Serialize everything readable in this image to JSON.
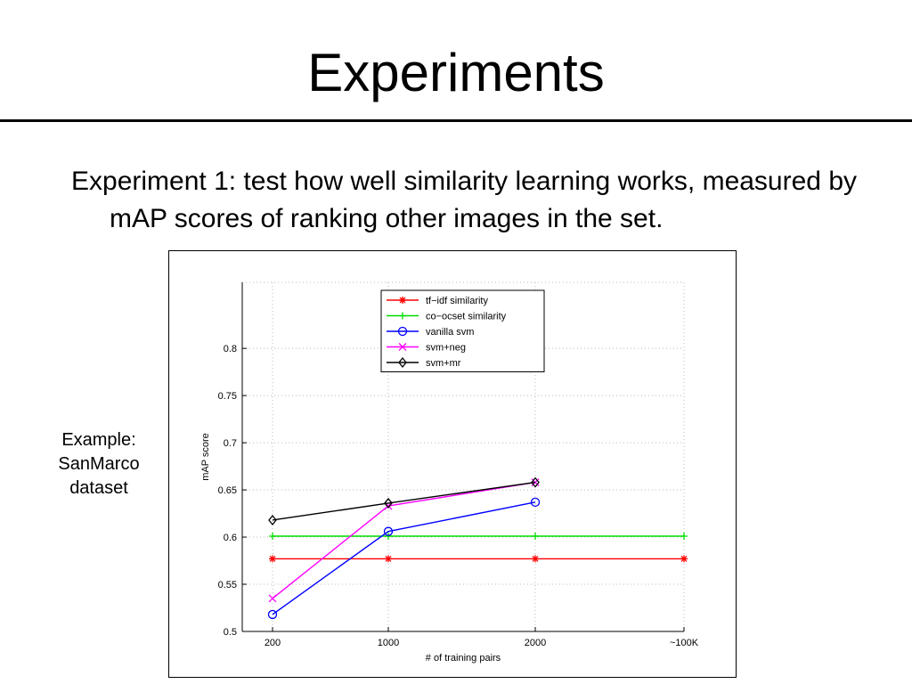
{
  "slide": {
    "title": "Experiments",
    "bullet": "Experiment 1: test how well similarity learning works, measured by mAP scores of ranking other images in the set.",
    "side_note": "Example: SanMarco dataset"
  },
  "chart_data": {
    "type": "line",
    "title": "",
    "xlabel": "# of training pairs",
    "ylabel": "mAP score",
    "categories": [
      "200",
      "1000",
      "2000",
      "~100K"
    ],
    "ylim": [
      0.5,
      0.87
    ],
    "yticks": [
      "0.5",
      "0.55",
      "0.6",
      "0.65",
      "0.7",
      "0.75",
      "0.8"
    ],
    "grid": true,
    "legend_position": "top-center",
    "series": [
      {
        "name": "tf−idf similarity",
        "color": "#ff0000",
        "marker": "star",
        "values": [
          0.577,
          0.577,
          0.577,
          0.577
        ]
      },
      {
        "name": "co−ocset similarity",
        "color": "#00dd00",
        "marker": "plus",
        "values": [
          0.601,
          0.601,
          0.601,
          0.601
        ]
      },
      {
        "name": "vanilla svm",
        "color": "#0000ff",
        "marker": "circle",
        "values": [
          0.518,
          0.606,
          0.637,
          null
        ]
      },
      {
        "name": "svm+neg",
        "color": "#ff00ff",
        "marker": "x",
        "values": [
          0.535,
          0.633,
          0.658,
          null
        ]
      },
      {
        "name": "svm+mr",
        "color": "#000000",
        "marker": "diamond",
        "values": [
          0.618,
          0.636,
          0.658,
          null
        ]
      }
    ]
  }
}
